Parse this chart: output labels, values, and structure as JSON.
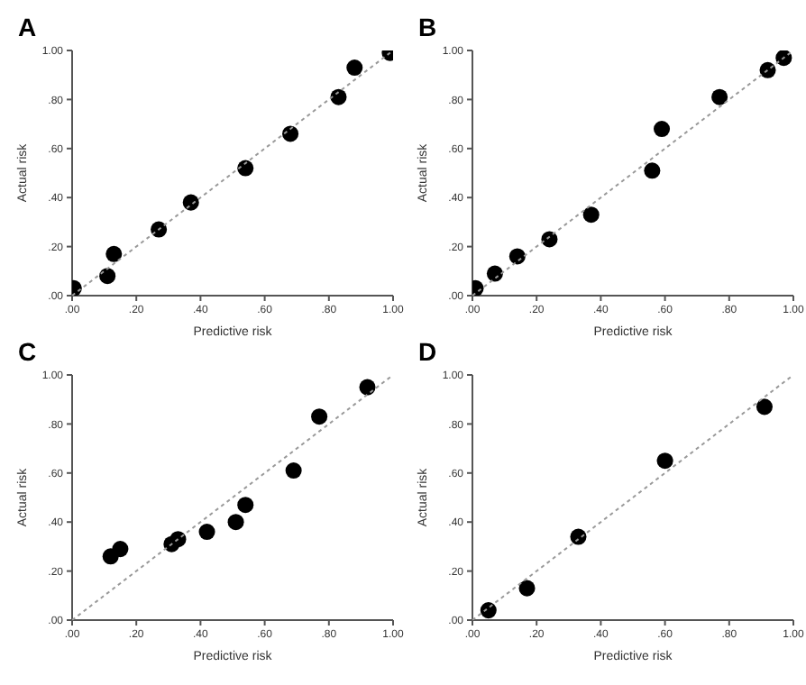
{
  "chart_data": [
    {
      "type": "scatter",
      "title": "A",
      "xlabel": "Predictive risk",
      "ylabel": "Actual risk",
      "xlim": [
        0,
        1
      ],
      "ylim": [
        0,
        1
      ],
      "xticks": [
        {
          "value": 0,
          "label": ".00"
        },
        {
          "value": 0.2,
          "label": ".20"
        },
        {
          "value": 0.4,
          "label": ".40"
        },
        {
          "value": 0.6,
          "label": ".60"
        },
        {
          "value": 0.8,
          "label": ".80"
        },
        {
          "value": 1,
          "label": "1.00"
        }
      ],
      "yticks": [
        {
          "value": 0,
          "label": ".00"
        },
        {
          "value": 0.2,
          "label": ".20"
        },
        {
          "value": 0.4,
          "label": ".40"
        },
        {
          "value": 0.6,
          "label": ".60"
        },
        {
          "value": 0.8,
          "label": ".80"
        },
        {
          "value": 1,
          "label": "1.00"
        }
      ],
      "marker": "circle",
      "grid": false,
      "series": [
        {
          "color": "#000000",
          "x": [
            0.005,
            0.11,
            0.13,
            0.27,
            0.37,
            0.54,
            0.68,
            0.83,
            0.88,
            0.99
          ],
          "values": [
            0.03,
            0.08,
            0.17,
            0.27,
            0.38,
            0.52,
            0.66,
            0.81,
            0.93,
            0.99
          ]
        },
        {
          "type": "line",
          "color": "#999999",
          "line_style": "dotted",
          "marker": "none",
          "x": [
            0,
            1
          ],
          "values": [
            0,
            1
          ]
        }
      ]
    },
    {
      "type": "scatter",
      "title": "B",
      "xlabel": "Predictive risk",
      "ylabel": "Actual risk",
      "xlim": [
        0,
        1
      ],
      "ylim": [
        0,
        1
      ],
      "xticks": [
        {
          "value": 0,
          "label": ".00"
        },
        {
          "value": 0.2,
          "label": ".20"
        },
        {
          "value": 0.4,
          "label": ".40"
        },
        {
          "value": 0.6,
          "label": ".60"
        },
        {
          "value": 0.8,
          "label": ".80"
        },
        {
          "value": 1,
          "label": "1.00"
        }
      ],
      "yticks": [
        {
          "value": 0,
          "label": ".00"
        },
        {
          "value": 0.2,
          "label": ".20"
        },
        {
          "value": 0.4,
          "label": ".40"
        },
        {
          "value": 0.6,
          "label": ".60"
        },
        {
          "value": 0.8,
          "label": ".80"
        },
        {
          "value": 1,
          "label": "1.00"
        }
      ],
      "marker": "circle",
      "grid": false,
      "series": [
        {
          "color": "#000000",
          "x": [
            0.01,
            0.07,
            0.14,
            0.24,
            0.37,
            0.56,
            0.59,
            0.77,
            0.92,
            0.97
          ],
          "values": [
            0.03,
            0.09,
            0.16,
            0.23,
            0.33,
            0.51,
            0.68,
            0.81,
            0.92,
            0.97
          ]
        },
        {
          "type": "line",
          "color": "#999999",
          "line_style": "dotted",
          "marker": "none",
          "x": [
            0,
            1
          ],
          "values": [
            0,
            1
          ]
        }
      ]
    },
    {
      "type": "scatter",
      "title": "C",
      "xlabel": "Predictive risk",
      "ylabel": "Actual risk",
      "xlim": [
        0,
        1
      ],
      "ylim": [
        0,
        1
      ],
      "xticks": [
        {
          "value": 0,
          "label": ".00"
        },
        {
          "value": 0.2,
          "label": ".20"
        },
        {
          "value": 0.4,
          "label": ".40"
        },
        {
          "value": 0.6,
          "label": ".60"
        },
        {
          "value": 0.8,
          "label": ".80"
        },
        {
          "value": 1,
          "label": "1.00"
        }
      ],
      "yticks": [
        {
          "value": 0,
          "label": ".00"
        },
        {
          "value": 0.2,
          "label": ".20"
        },
        {
          "value": 0.4,
          "label": ".40"
        },
        {
          "value": 0.6,
          "label": ".60"
        },
        {
          "value": 0.8,
          "label": ".80"
        },
        {
          "value": 1,
          "label": "1.00"
        }
      ],
      "marker": "circle",
      "grid": false,
      "series": [
        {
          "color": "#000000",
          "x": [
            0.12,
            0.15,
            0.31,
            0.33,
            0.42,
            0.51,
            0.54,
            0.69,
            0.77,
            0.92
          ],
          "values": [
            0.26,
            0.29,
            0.31,
            0.33,
            0.36,
            0.4,
            0.47,
            0.61,
            0.83,
            0.95
          ]
        },
        {
          "type": "line",
          "color": "#999999",
          "line_style": "dotted",
          "marker": "none",
          "x": [
            0,
            1
          ],
          "values": [
            0,
            1
          ]
        }
      ]
    },
    {
      "type": "scatter",
      "title": "D",
      "xlabel": "Predictive risk",
      "ylabel": "Actual risk",
      "xlim": [
        0,
        1
      ],
      "ylim": [
        0,
        1
      ],
      "xticks": [
        {
          "value": 0,
          "label": ".00"
        },
        {
          "value": 0.2,
          "label": ".20"
        },
        {
          "value": 0.4,
          "label": ".40"
        },
        {
          "value": 0.6,
          "label": ".60"
        },
        {
          "value": 0.8,
          "label": ".80"
        },
        {
          "value": 1,
          "label": "1.00"
        }
      ],
      "yticks": [
        {
          "value": 0,
          "label": ".00"
        },
        {
          "value": 0.2,
          "label": ".20"
        },
        {
          "value": 0.4,
          "label": ".40"
        },
        {
          "value": 0.6,
          "label": ".60"
        },
        {
          "value": 0.8,
          "label": ".80"
        },
        {
          "value": 1,
          "label": "1.00"
        }
      ],
      "marker": "circle",
      "grid": false,
      "series": [
        {
          "color": "#000000",
          "x": [
            0.05,
            0.17,
            0.33,
            0.6,
            0.91
          ],
          "values": [
            0.04,
            0.13,
            0.34,
            0.65,
            0.87
          ]
        },
        {
          "type": "line",
          "color": "#999999",
          "line_style": "dotted",
          "marker": "none",
          "x": [
            0,
            1
          ],
          "values": [
            0,
            1
          ]
        }
      ]
    }
  ]
}
